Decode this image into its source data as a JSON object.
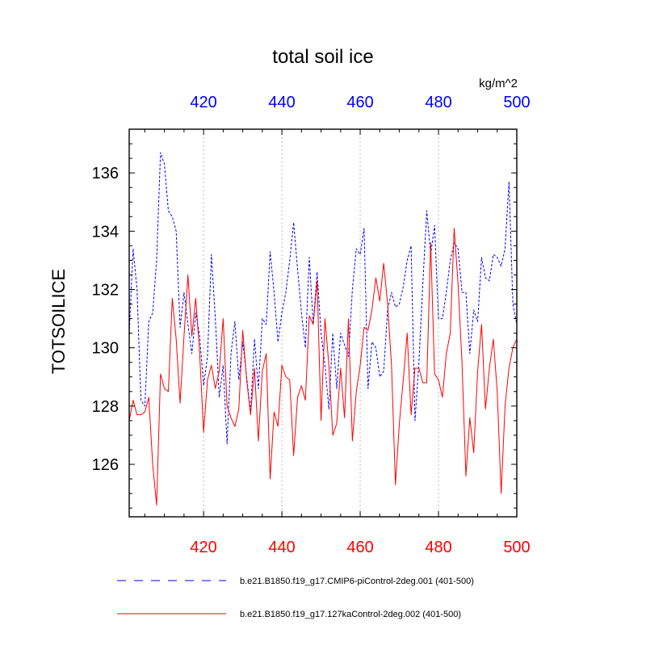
{
  "chart_data": {
    "type": "line",
    "title": "total soil ice",
    "units": "kg/m^2",
    "ylabel": "TOTSOILICE",
    "xlim": [
      401,
      500
    ],
    "ylim": [
      124.2,
      137.5
    ],
    "x_ticks": [
      420,
      440,
      460,
      480,
      500
    ],
    "x_tick_labels": [
      "420",
      "440",
      "460",
      "480",
      "500"
    ],
    "y_ticks": [
      126,
      128,
      130,
      132,
      134,
      136
    ],
    "y_tick_labels": [
      "126",
      "128",
      "130",
      "132",
      "134",
      "136"
    ],
    "top_axis_color": "#0000ff",
    "bottom_axis_color": "#ff0000",
    "grid": "vertical dotted lines at major x ticks",
    "series": [
      {
        "name": "b.e21.B1850.f19_g17.CMIP6-piControl-2deg.001 (401-500)",
        "color": "#0000ff",
        "style": "dashed",
        "x_start": 401,
        "values": [
          130.5,
          133.4,
          132.0,
          128.2,
          128.0,
          130.9,
          131.2,
          133.0,
          136.7,
          136.3,
          134.7,
          134.5,
          134.0,
          130.7,
          131.9,
          130.8,
          129.8,
          131.2,
          130.4,
          128.7,
          129.7,
          133.2,
          131.0,
          128.3,
          129.4,
          126.7,
          129.8,
          130.9,
          128.9,
          130.2,
          129.0,
          127.8,
          130.3,
          128.6,
          131.0,
          130.8,
          133.3,
          131.9,
          130.2,
          131.2,
          131.9,
          133.0,
          134.3,
          132.7,
          131.2,
          130.0,
          133.1,
          130.8,
          132.6,
          130.5,
          129.4,
          127.9,
          130.5,
          128.6,
          130.5,
          130.1,
          129.7,
          132.0,
          133.4,
          133.2,
          134.1,
          128.6,
          130.2,
          130.0,
          129.0,
          129.2,
          131.3,
          131.9,
          131.4,
          131.5,
          132.1,
          133.0,
          133.5,
          127.5,
          129.5,
          132.2,
          134.7,
          133.2,
          134.2,
          131.0,
          131.0,
          131.9,
          133.0,
          133.6,
          133.4,
          131.9,
          131.9,
          129.8,
          131.3,
          130.9,
          133.1,
          132.4,
          132.3,
          133.2,
          133.1,
          132.8,
          133.4,
          135.7,
          131.5,
          130.8
        ]
      },
      {
        "name": "b.e21.B1850.f19_g17.127kaControl-2deg.002 (401-500)",
        "color": "#ff0000",
        "style": "solid",
        "x_start": 401,
        "values": [
          127.5,
          128.2,
          127.7,
          127.7,
          127.8,
          128.3,
          126.0,
          124.6,
          129.1,
          128.6,
          128.5,
          131.7,
          130.3,
          128.1,
          130.4,
          132.5,
          130.4,
          131.7,
          129.8,
          127.1,
          128.9,
          129.4,
          128.6,
          129.2,
          131.0,
          128.0,
          127.6,
          127.3,
          127.9,
          130.6,
          128.9,
          127.7,
          129.3,
          126.8,
          129.2,
          129.8,
          125.5,
          127.8,
          127.3,
          129.4,
          129.0,
          128.9,
          126.3,
          128.3,
          128.7,
          128.2,
          131.1,
          130.8,
          132.3,
          127.5,
          131.0,
          129.4,
          127.0,
          127.4,
          129.3,
          127.6,
          131.0,
          126.8,
          128.5,
          129.4,
          130.7,
          130.6,
          131.3,
          132.4,
          131.6,
          132.9,
          131.5,
          129.4,
          125.3,
          127.4,
          128.9,
          130.5,
          127.7,
          129.3,
          129.3,
          128.8,
          128.8,
          133.6,
          129.1,
          128.9,
          128.3,
          129.8,
          130.5,
          134.1,
          132.2,
          129.5,
          125.6,
          127.6,
          126.4,
          129.2,
          130.8,
          127.9,
          129.3,
          130.3,
          128.5,
          125.0,
          128.0,
          129.3,
          130.0,
          130.3
        ]
      }
    ]
  }
}
